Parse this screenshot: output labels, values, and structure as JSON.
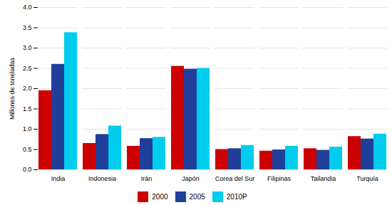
{
  "chart_data": {
    "type": "bar",
    "categories": [
      "India",
      "Indonesia",
      "Irán",
      "Japón",
      "Corea del Sur",
      "Filipinas",
      "Tailandia",
      "Turquía"
    ],
    "series": [
      {
        "name": "2000",
        "color": "#CC0000",
        "values": [
          1.95,
          0.65,
          0.58,
          2.55,
          0.5,
          0.46,
          0.52,
          0.82
        ]
      },
      {
        "name": "2005",
        "color": "#1F3F99",
        "values": [
          2.6,
          0.87,
          0.77,
          2.48,
          0.52,
          0.49,
          0.48,
          0.76
        ]
      },
      {
        "name": "2010P",
        "color": "#00CCEE",
        "values": [
          3.38,
          1.08,
          0.8,
          2.5,
          0.6,
          0.58,
          0.56,
          0.88
        ]
      }
    ],
    "ylabel": "Millones de toneladas",
    "ylim": [
      0.0,
      4.0
    ],
    "yticks": [
      {
        "value": 0,
        "label": "0.0"
      },
      0.5,
      {
        "value": 1,
        "label": "1.0"
      },
      1.5,
      {
        "value": 2,
        "label": "2.0"
      },
      2.5,
      {
        "value": 3,
        "label": "3.0"
      },
      3.5,
      {
        "value": 4,
        "label": "4.0"
      }
    ],
    "grid": true,
    "legend": "bottom"
  }
}
